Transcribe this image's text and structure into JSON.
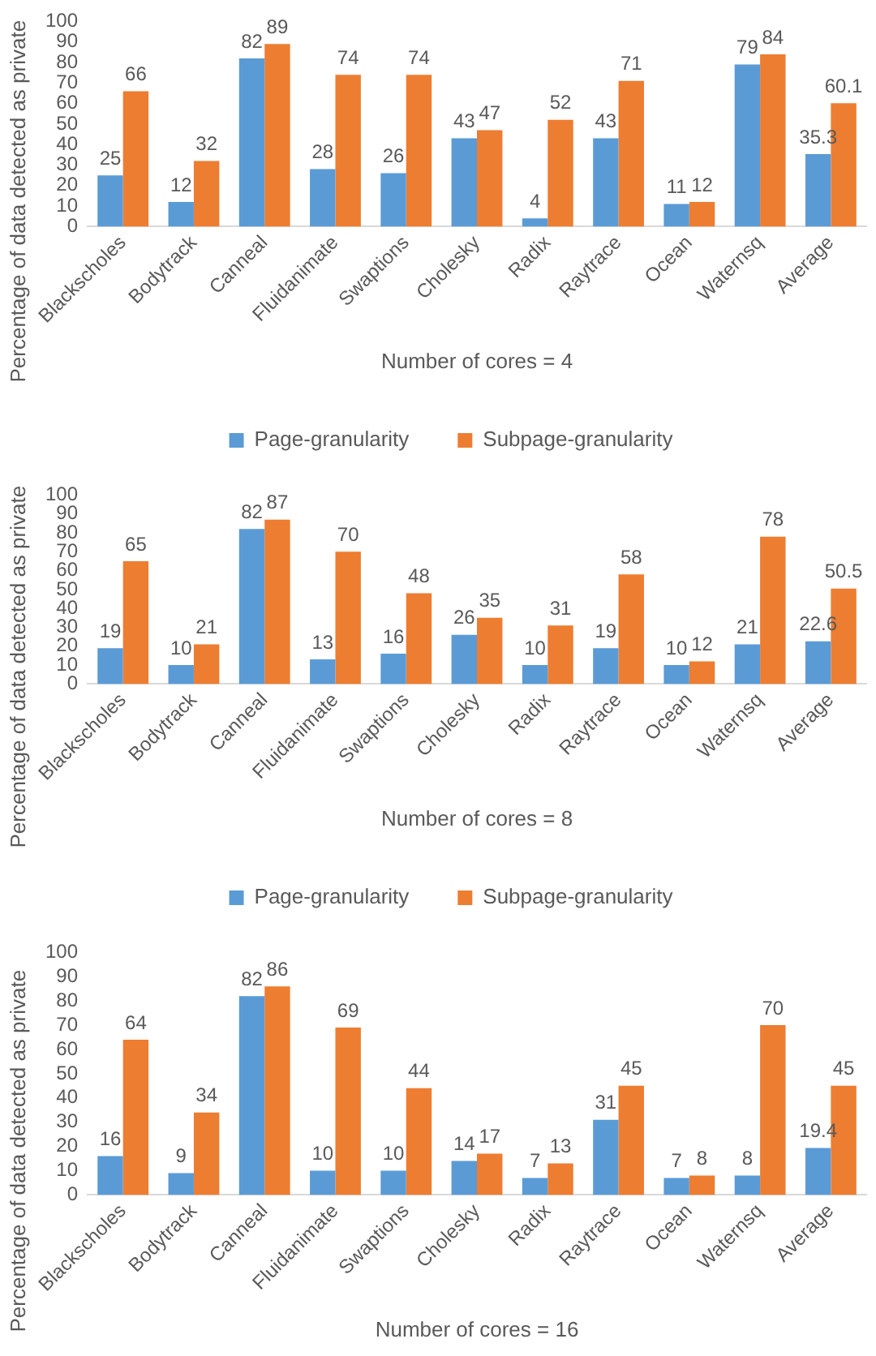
{
  "chart_data": [
    {
      "type": "bar",
      "xlabel": "Number of cores = 4",
      "ylabel": "Percentage of data detected as private",
      "categories": [
        "Blackscholes",
        "Bodytrack",
        "Canneal",
        "Fluidanimate",
        "Swaptions",
        "Cholesky",
        "Radix",
        "Raytrace",
        "Ocean",
        "Waternsq",
        "Average"
      ],
      "series": [
        {
          "name": "Page-granularity",
          "color": "#5b9bd5",
          "values": [
            25,
            12,
            82,
            28,
            26,
            43,
            4,
            43,
            11,
            79,
            35.3
          ]
        },
        {
          "name": "Subpage-granularity",
          "color": "#ed7d31",
          "values": [
            66,
            32,
            89,
            74,
            74,
            47,
            52,
            71,
            12,
            84,
            60.1
          ]
        }
      ],
      "ylim": [
        0,
        100
      ],
      "yticks": [
        0,
        10,
        20,
        30,
        40,
        50,
        60,
        70,
        80,
        90,
        100
      ],
      "grid": false,
      "legend": "bottom",
      "data_labels": true
    },
    {
      "type": "bar",
      "xlabel": "Number of cores = 8",
      "ylabel": "Percentage of data detected as private",
      "categories": [
        "Blackscholes",
        "Bodytrack",
        "Canneal",
        "Fluidanimate",
        "Swaptions",
        "Cholesky",
        "Radix",
        "Raytrace",
        "Ocean",
        "Waternsq",
        "Average"
      ],
      "series": [
        {
          "name": "Page-granularity",
          "color": "#5b9bd5",
          "values": [
            19,
            10,
            82,
            13,
            16,
            26,
            10,
            19,
            10,
            21,
            22.6
          ]
        },
        {
          "name": "Subpage-granularity",
          "color": "#ed7d31",
          "values": [
            65,
            21,
            87,
            70,
            48,
            35,
            31,
            58,
            12,
            78,
            50.5
          ]
        }
      ],
      "ylim": [
        0,
        100
      ],
      "yticks": [
        0,
        10,
        20,
        30,
        40,
        50,
        60,
        70,
        80,
        90,
        100
      ],
      "grid": false,
      "legend": "bottom",
      "data_labels": true
    },
    {
      "type": "bar",
      "xlabel": "Number of cores = 16",
      "ylabel": "Percentage of data detected as private",
      "categories": [
        "Blackscholes",
        "Bodytrack",
        "Canneal",
        "Fluidanimate",
        "Swaptions",
        "Cholesky",
        "Radix",
        "Raytrace",
        "Ocean",
        "Waternsq",
        "Average"
      ],
      "series": [
        {
          "color": "#5b9bd5",
          "values": [
            16,
            9,
            82,
            10,
            10,
            14,
            7,
            31,
            7,
            8,
            19.4
          ]
        },
        {
          "color": "#ed7d31",
          "values": [
            64,
            34,
            86,
            69,
            44,
            17,
            13,
            45,
            8,
            70,
            45
          ]
        }
      ],
      "ylim": [
        0,
        100
      ],
      "yticks": [
        0,
        10,
        20,
        30,
        40,
        50,
        60,
        70,
        80,
        90,
        100
      ],
      "grid": false,
      "data_labels": true
    }
  ]
}
